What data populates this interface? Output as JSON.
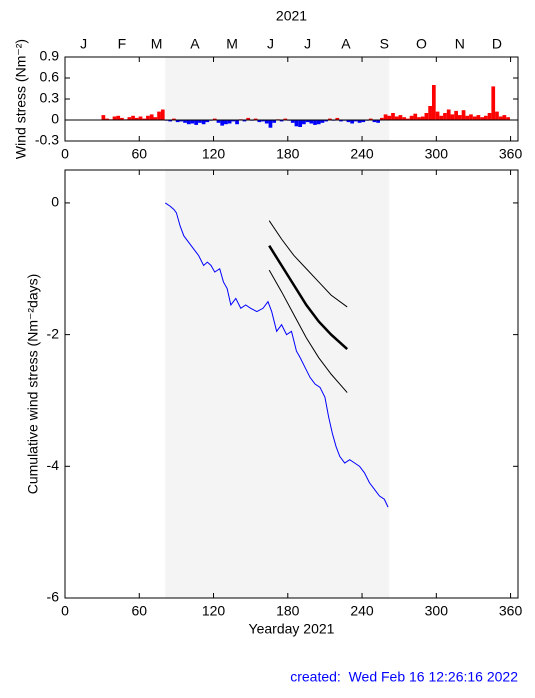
{
  "chart_data": [
    {
      "type": "bar",
      "title": "2021",
      "ylabel": "Wind stress (Nm⁻²)",
      "xlim": [
        0,
        366
      ],
      "xticks": [
        0,
        60,
        120,
        180,
        240,
        300,
        360
      ],
      "x2ticks": [
        {
          "value": 15,
          "label": "J"
        },
        {
          "value": 46,
          "label": "F"
        },
        {
          "value": 74,
          "label": "M"
        },
        {
          "value": 105,
          "label": "A"
        },
        {
          "value": 135,
          "label": "M"
        },
        {
          "value": 166,
          "label": "J"
        },
        {
          "value": 196,
          "label": "J"
        },
        {
          "value": 227,
          "label": "A"
        },
        {
          "value": 258,
          "label": "S"
        },
        {
          "value": 288,
          "label": "O"
        },
        {
          "value": 319,
          "label": "N"
        },
        {
          "value": 349,
          "label": "D"
        }
      ],
      "ylim": [
        -0.3,
        0.9
      ],
      "yticks": [
        -0.3,
        0,
        0.3,
        0.6,
        0.9
      ],
      "highlight_range": [
        81,
        262
      ],
      "color_positive": "#ff0000",
      "color_negative": "#0000ff",
      "bar_width": 3,
      "x": [
        31,
        34,
        37,
        40,
        43,
        46,
        49,
        52,
        55,
        58,
        61,
        64,
        67,
        70,
        73,
        76,
        79,
        82,
        85,
        88,
        91,
        94,
        97,
        100,
        103,
        106,
        109,
        112,
        115,
        118,
        121,
        124,
        127,
        130,
        133,
        136,
        139,
        142,
        145,
        148,
        151,
        154,
        157,
        160,
        163,
        166,
        169,
        172,
        175,
        178,
        181,
        184,
        187,
        190,
        193,
        196,
        199,
        202,
        205,
        208,
        211,
        214,
        217,
        220,
        223,
        226,
        229,
        232,
        235,
        238,
        241,
        244,
        247,
        250,
        253,
        256,
        259,
        262,
        265,
        268,
        271,
        274,
        277,
        280,
        283,
        286,
        289,
        292,
        295,
        298,
        301,
        304,
        307,
        310,
        313,
        316,
        319,
        322,
        325,
        328,
        331,
        334,
        337,
        340,
        343,
        346,
        349,
        352,
        355,
        358
      ],
      "values": [
        0.07,
        0.02,
        0.01,
        0.05,
        0.06,
        0.03,
        0.01,
        0.04,
        0.06,
        0.03,
        0.05,
        0.02,
        0.06,
        0.08,
        0.04,
        0.12,
        0.15,
        -0.01,
        -0.02,
        0.02,
        -0.03,
        -0.02,
        -0.04,
        -0.06,
        -0.05,
        -0.07,
        -0.04,
        -0.06,
        -0.03,
        -0.01,
        0.02,
        -0.04,
        -0.08,
        -0.06,
        -0.05,
        -0.02,
        -0.06,
        0.01,
        -0.02,
        0.03,
        -0.01,
        0.02,
        -0.03,
        -0.02,
        -0.05,
        -0.11,
        -0.04,
        0.01,
        -0.02,
        0.02,
        -0.01,
        -0.04,
        -0.09,
        -0.1,
        -0.06,
        -0.03,
        -0.05,
        -0.07,
        -0.06,
        -0.04,
        -0.02,
        0.02,
        -0.01,
        0.03,
        -0.02,
        -0.01,
        -0.03,
        -0.05,
        -0.02,
        -0.04,
        -0.03,
        -0.01,
        0.02,
        -0.03,
        -0.04,
        0.03,
        0.08,
        0.06,
        0.1,
        0.05,
        0.07,
        0.04,
        0.02,
        0.06,
        0.09,
        0.04,
        0.05,
        0.1,
        0.2,
        0.5,
        0.12,
        0.06,
        0.1,
        0.15,
        0.08,
        0.13,
        0.07,
        0.14,
        0.06,
        0.08,
        0.05,
        0.07,
        0.04,
        0.06,
        0.1,
        0.48,
        0.12,
        0.05,
        0.07,
        0.04
      ]
    },
    {
      "type": "line",
      "ylabel": "Cumulative wind stress (Nm⁻²days)",
      "xlabel": "Yearday 2021",
      "xlim": [
        0,
        366
      ],
      "xticks": [
        0,
        60,
        120,
        180,
        240,
        300,
        360
      ],
      "ylim": [
        -6,
        0.5
      ],
      "yticks": [
        -6,
        -4,
        -2,
        0
      ],
      "highlight_range": [
        81,
        262
      ],
      "series": [
        {
          "color": "#0000ff",
          "width": 1,
          "x": [
            81,
            85,
            88,
            90,
            93,
            96,
            100,
            104,
            108,
            112,
            115,
            118,
            121,
            125,
            128,
            131,
            134,
            138,
            142,
            146,
            150,
            155,
            160,
            164,
            167,
            171,
            175,
            179,
            183,
            187,
            190,
            194,
            198,
            202,
            206,
            210,
            213,
            216,
            219,
            222,
            226,
            230,
            234,
            238,
            242,
            246,
            250,
            254,
            258,
            261
          ],
          "values": [
            0,
            -0.05,
            -0.1,
            -0.15,
            -0.35,
            -0.5,
            -0.6,
            -0.7,
            -0.8,
            -0.95,
            -0.9,
            -0.95,
            -1.05,
            -1.0,
            -1.2,
            -1.3,
            -1.55,
            -1.45,
            -1.6,
            -1.55,
            -1.6,
            -1.65,
            -1.6,
            -1.5,
            -1.65,
            -1.95,
            -1.85,
            -2.0,
            -1.95,
            -2.25,
            -2.35,
            -2.5,
            -2.65,
            -2.75,
            -2.8,
            -2.95,
            -3.25,
            -3.5,
            -3.7,
            -3.85,
            -3.95,
            -3.9,
            -3.95,
            -4.0,
            -4.1,
            -4.25,
            -4.35,
            -4.45,
            -4.5,
            -4.62
          ]
        },
        {
          "color": "#000000",
          "width": 1,
          "x": [
            165,
            175,
            185,
            195,
            205,
            215,
            228
          ],
          "values": [
            -0.27,
            -0.55,
            -0.8,
            -1.0,
            -1.2,
            -1.4,
            -1.58
          ]
        },
        {
          "color": "#000000",
          "width": 2.5,
          "x": [
            165,
            175,
            185,
            195,
            205,
            215,
            228
          ],
          "values": [
            -0.65,
            -0.95,
            -1.25,
            -1.55,
            -1.8,
            -2.0,
            -2.22
          ]
        },
        {
          "color": "#000000",
          "width": 1,
          "x": [
            165,
            175,
            185,
            195,
            205,
            215,
            228
          ],
          "values": [
            -1.02,
            -1.35,
            -1.7,
            -2.05,
            -2.35,
            -2.6,
            -2.88
          ]
        }
      ]
    }
  ],
  "footer": "created:  Wed Feb 16 12:26:16 2022"
}
